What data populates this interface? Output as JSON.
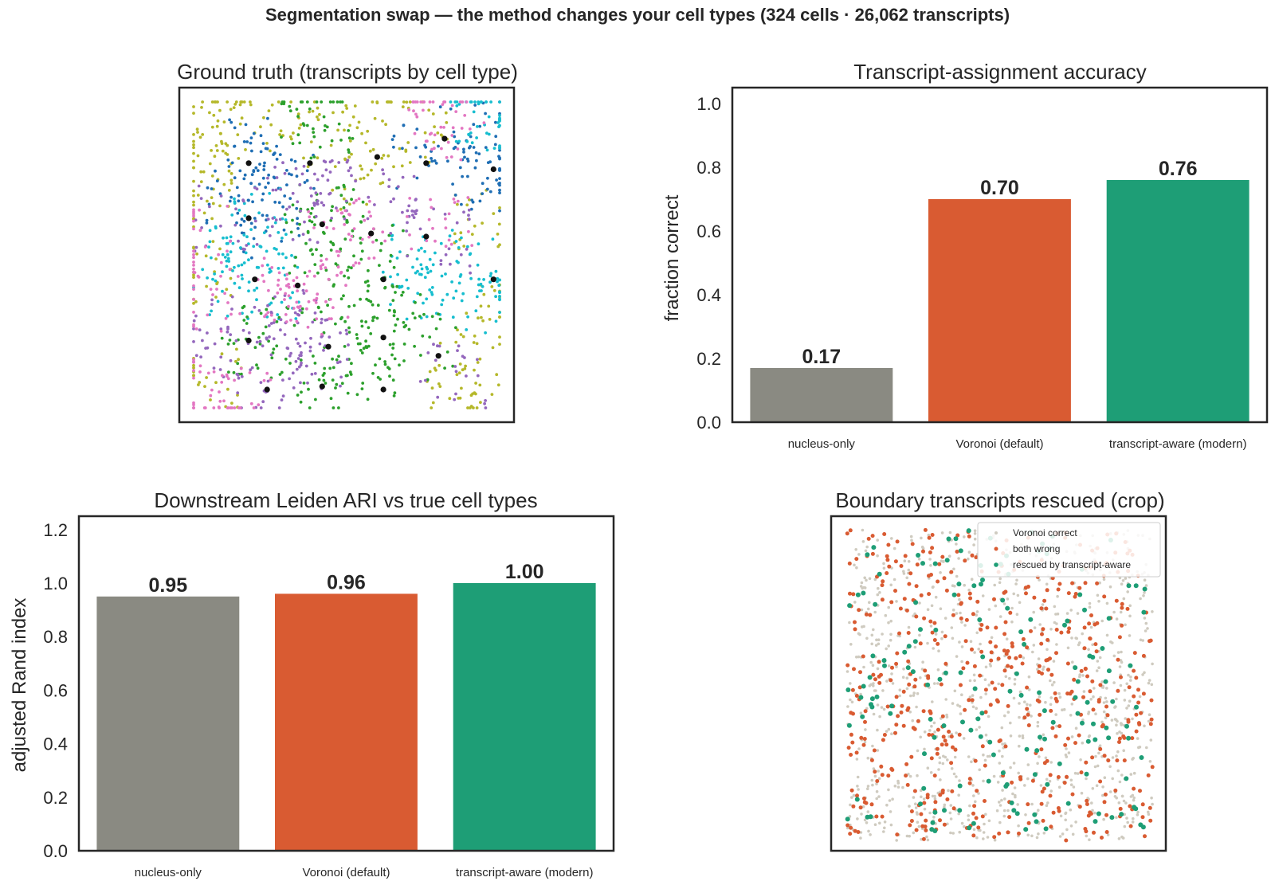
{
  "suptitle": "Segmentation swap — the method changes your cell types (324 cells · 26,062 transcripts)",
  "colors": {
    "nucleus_only": "#8a8a82",
    "voronoi": "#d95b32",
    "transcript_aware": "#1e9e76",
    "voronoi_correct": "#cfcbc0",
    "axis": "#262626"
  },
  "chart_data": [
    {
      "type": "scatter",
      "title": "Ground truth (transcripts by cell type)",
      "axes_visible": false,
      "series": [
        {
          "color": "#b5b82a",
          "points": [
            [
              0.04,
              0.9
            ],
            [
              0.08,
              0.82
            ],
            [
              0.12,
              0.95
            ],
            [
              0.02,
              0.7
            ],
            [
              0.3,
              0.92
            ],
            [
              0.45,
              0.88
            ],
            [
              0.55,
              0.75
            ],
            [
              0.72,
              0.9
            ],
            [
              0.96,
              0.62
            ],
            [
              0.97,
              0.3
            ],
            [
              0.02,
              0.45
            ],
            [
              0.9,
              0.15
            ],
            [
              0.85,
              0.05
            ],
            [
              0.6,
              0.95
            ],
            [
              0.05,
              0.1
            ]
          ]
        },
        {
          "color": "#1f6eb4",
          "points": [
            [
              0.18,
              0.78
            ],
            [
              0.22,
              0.85
            ],
            [
              0.15,
              0.7
            ],
            [
              0.95,
              0.8
            ],
            [
              0.98,
              0.75
            ],
            [
              0.9,
              0.9
            ],
            [
              0.75,
              0.82
            ],
            [
              0.3,
              0.75
            ],
            [
              0.25,
              0.6
            ]
          ]
        },
        {
          "color": "#17becf",
          "points": [
            [
              0.18,
              0.62
            ],
            [
              0.2,
              0.55
            ],
            [
              0.15,
              0.4
            ],
            [
              0.25,
              0.4
            ],
            [
              0.75,
              0.5
            ],
            [
              0.8,
              0.45
            ],
            [
              0.95,
              0.45
            ],
            [
              0.7,
              0.4
            ],
            [
              0.9,
              0.35
            ],
            [
              0.1,
              0.5
            ],
            [
              0.98,
              0.98
            ],
            [
              0.94,
              0.95
            ]
          ]
        },
        {
          "color": "#2ca02c",
          "points": [
            [
              0.42,
              0.62
            ],
            [
              0.4,
              0.55
            ],
            [
              0.45,
              0.6
            ],
            [
              0.6,
              0.5
            ],
            [
              0.55,
              0.4
            ],
            [
              0.65,
              0.3
            ],
            [
              0.6,
              0.2
            ],
            [
              0.55,
              0.1
            ],
            [
              0.5,
              0.25
            ],
            [
              0.2,
              0.2
            ],
            [
              0.25,
              0.25
            ],
            [
              0.45,
              0.05
            ],
            [
              0.75,
              0.2
            ],
            [
              0.38,
              0.95
            ],
            [
              0.42,
              0.92
            ]
          ]
        },
        {
          "color": "#9467bd",
          "points": [
            [
              0.1,
              0.62
            ],
            [
              0.3,
              0.65
            ],
            [
              0.35,
              0.7
            ],
            [
              0.5,
              0.7
            ],
            [
              0.62,
              0.68
            ],
            [
              0.15,
              0.3
            ],
            [
              0.35,
              0.2
            ],
            [
              0.4,
              0.15
            ],
            [
              0.25,
              0.05
            ],
            [
              0.05,
              0.2
            ],
            [
              0.8,
              0.55
            ],
            [
              0.85,
              0.1
            ],
            [
              0.32,
              0.28
            ]
          ]
        },
        {
          "color": "#e377c2",
          "points": [
            [
              0.35,
              0.4
            ],
            [
              0.4,
              0.35
            ],
            [
              0.3,
              0.38
            ],
            [
              0.52,
              0.58
            ],
            [
              0.48,
              0.55
            ],
            [
              0.03,
              0.55
            ],
            [
              0.02,
              0.05
            ],
            [
              0.8,
              0.95
            ],
            [
              0.85,
              0.92
            ],
            [
              0.8,
              0.6
            ],
            [
              0.15,
              0.02
            ],
            [
              0.05,
              0.35
            ]
          ]
        }
      ],
      "nuclei": [
        [
          0.82,
          0.88
        ],
        [
          0.18,
          0.8
        ],
        [
          0.38,
          0.8
        ],
        [
          0.6,
          0.82
        ],
        [
          0.76,
          0.8
        ],
        [
          0.98,
          0.78
        ],
        [
          0.18,
          0.62
        ],
        [
          0.42,
          0.6
        ],
        [
          0.58,
          0.57
        ],
        [
          0.76,
          0.56
        ],
        [
          0.2,
          0.42
        ],
        [
          0.34,
          0.4
        ],
        [
          0.62,
          0.42
        ],
        [
          0.98,
          0.42
        ],
        [
          0.18,
          0.22
        ],
        [
          0.44,
          0.2
        ],
        [
          0.62,
          0.23
        ],
        [
          0.8,
          0.17
        ],
        [
          0.24,
          0.06
        ],
        [
          0.42,
          0.07
        ],
        [
          0.62,
          0.06
        ]
      ]
    },
    {
      "type": "bar",
      "title": "Transcript-assignment accuracy",
      "ylabel": "fraction correct",
      "ylim": [
        0,
        1.05
      ],
      "yticks": [
        "0.0",
        "0.2",
        "0.4",
        "0.6",
        "0.8",
        "1.0"
      ],
      "categories": [
        "nucleus-only",
        "Voronoi (default)",
        "transcript-aware (modern)"
      ],
      "values": [
        0.17,
        0.7,
        0.76
      ],
      "labels": [
        "0.17",
        "0.70",
        "0.76"
      ]
    },
    {
      "type": "bar",
      "title": "Downstream Leiden ARI vs true cell types",
      "ylabel": "adjusted Rand index",
      "ylim": [
        0,
        1.25
      ],
      "yticks": [
        "0.0",
        "0.2",
        "0.4",
        "0.6",
        "0.8",
        "1.0",
        "1.2"
      ],
      "categories": [
        "nucleus-only",
        "Voronoi (default)",
        "transcript-aware (modern)"
      ],
      "values": [
        0.95,
        0.96,
        1.0
      ],
      "labels": [
        "0.95",
        "0.96",
        "1.00"
      ]
    },
    {
      "type": "scatter",
      "title": "Boundary transcripts rescued (crop)",
      "axes_visible": false,
      "legend": [
        "Voronoi correct",
        "both wrong",
        "rescued by transcript-aware"
      ],
      "legend_position": "top-right",
      "counts_approx": {
        "Voronoi correct": 900,
        "both wrong": 520,
        "rescued by transcript-aware": 160
      }
    }
  ]
}
